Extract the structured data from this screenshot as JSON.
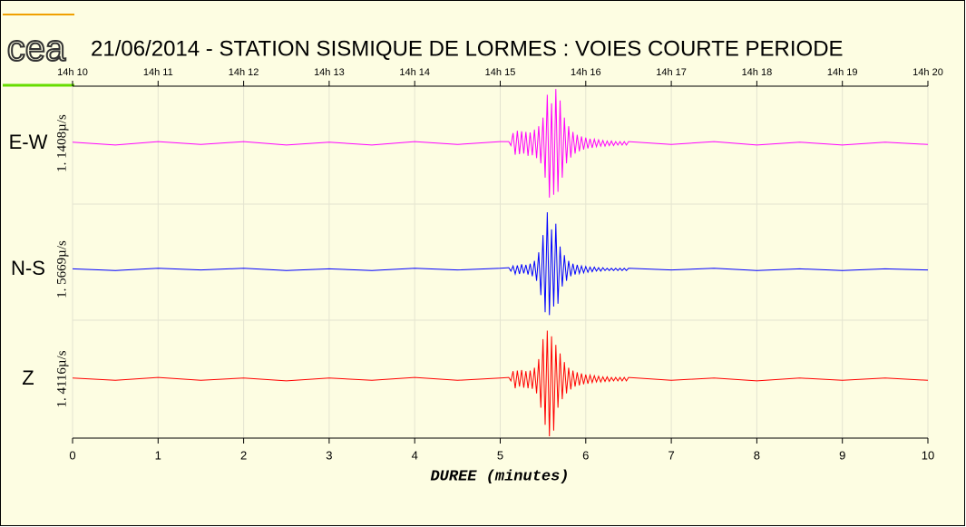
{
  "logo": "cea",
  "chart_data": {
    "type": "line",
    "title": "21/06/2014  -  STATION SISMIQUE DE LORMES : VOIES COURTE PERIODE",
    "x_label": "DUREE (minutes)",
    "xlim": [
      0,
      10
    ],
    "xticks": [
      0,
      1,
      2,
      3,
      4,
      5,
      6,
      7,
      8,
      9,
      10
    ],
    "x2ticks": [
      {
        "value": 0,
        "label": "14h 10"
      },
      {
        "value": 1,
        "label": "14h 11"
      },
      {
        "value": 2,
        "label": "14h 12"
      },
      {
        "value": 3,
        "label": "14h 13"
      },
      {
        "value": 4,
        "label": "14h 14"
      },
      {
        "value": 5,
        "label": "14h 15"
      },
      {
        "value": 6,
        "label": "14h 16"
      },
      {
        "value": 7,
        "label": "14h 17"
      },
      {
        "value": 8,
        "label": "14h 18"
      },
      {
        "value": 9,
        "label": "14h 19"
      },
      {
        "value": 10,
        "label": "14h 20"
      }
    ],
    "ylim": [
      -1,
      1
    ],
    "grid": true,
    "x": [
      0,
      0.5,
      1,
      1.5,
      2,
      2.5,
      3,
      3.5,
      4,
      4.5,
      5,
      5.1,
      5.125,
      5.15,
      5.175,
      5.2,
      5.225,
      5.25,
      5.275,
      5.3,
      5.325,
      5.35,
      5.375,
      5.4,
      5.425,
      5.45,
      5.475,
      5.5,
      5.525,
      5.55,
      5.575,
      5.6,
      5.625,
      5.65,
      5.675,
      5.7,
      5.725,
      5.75,
      5.775,
      5.8,
      5.825,
      5.85,
      5.875,
      5.9,
      5.925,
      5.95,
      5.975,
      6,
      6.025,
      6.05,
      6.075,
      6.1,
      6.125,
      6.15,
      6.175,
      6.2,
      6.225,
      6.25,
      6.275,
      6.3,
      6.325,
      6.35,
      6.375,
      6.4,
      6.425,
      6.45,
      6.475,
      6.5,
      7,
      7.5,
      8,
      8.5,
      9,
      9.5,
      10
    ],
    "series": [
      {
        "name": "E-W",
        "scale_label": "1. 1408µ/s",
        "color": "#ff00ff",
        "values": [
          0.02,
          -0.03,
          0.03,
          -0.02,
          0.03,
          -0.03,
          0.02,
          -0.03,
          0.03,
          -0.02,
          0.03,
          0.03,
          -0.04,
          0.18,
          -0.2,
          0.22,
          -0.19,
          0.21,
          -0.18,
          0.2,
          -0.22,
          0.19,
          -0.21,
          0.24,
          -0.26,
          0.3,
          -0.35,
          0.45,
          -0.6,
          0.85,
          -0.95,
          0.7,
          -0.9,
          0.95,
          -0.85,
          0.75,
          -0.6,
          0.45,
          -0.35,
          0.3,
          -0.25,
          0.2,
          -0.18,
          0.15,
          -0.14,
          0.12,
          -0.11,
          0.1,
          -0.09,
          0.08,
          -0.08,
          0.07,
          -0.06,
          0.06,
          -0.05,
          0.05,
          -0.05,
          0.04,
          -0.04,
          0.04,
          -0.04,
          0.03,
          -0.03,
          0.03,
          -0.03,
          0.03,
          -0.03,
          0.03,
          -0.02,
          0.03,
          -0.03,
          0.02,
          -0.03,
          0.02,
          -0.02
        ]
      },
      {
        "name": "N-S",
        "scale_label": "1. 5669µ/s",
        "color": "#0000ff",
        "values": [
          0.01,
          -0.02,
          0.02,
          -0.01,
          0.02,
          -0.02,
          0.01,
          -0.02,
          0.02,
          -0.01,
          0.02,
          0.03,
          -0.03,
          0.06,
          -0.08,
          0.07,
          -0.08,
          0.09,
          -0.07,
          0.08,
          -0.09,
          0.1,
          -0.12,
          0.15,
          -0.2,
          0.3,
          -0.45,
          0.6,
          -0.75,
          1.0,
          -0.8,
          0.7,
          -0.65,
          0.8,
          -0.6,
          0.4,
          -0.3,
          0.25,
          -0.2,
          0.15,
          -0.12,
          0.1,
          -0.09,
          0.08,
          -0.07,
          0.06,
          -0.06,
          0.05,
          -0.05,
          0.04,
          -0.04,
          0.04,
          -0.03,
          0.03,
          -0.03,
          0.03,
          -0.02,
          0.02,
          -0.02,
          0.02,
          -0.02,
          0.02,
          -0.02,
          0.02,
          -0.02,
          0.02,
          -0.02,
          0.02,
          -0.01,
          0.02,
          -0.02,
          0.01,
          -0.02,
          0.01,
          -0.01
        ]
      },
      {
        "name": "Z",
        "scale_label": "1. 4116µ/s",
        "color": "#ff0000",
        "values": [
          0.02,
          -0.02,
          0.03,
          -0.02,
          0.02,
          -0.03,
          0.02,
          -0.02,
          0.03,
          -0.02,
          0.02,
          0.03,
          -0.03,
          0.14,
          -0.16,
          0.15,
          -0.13,
          0.16,
          -0.15,
          0.14,
          -0.16,
          0.15,
          -0.17,
          0.2,
          -0.25,
          0.35,
          -0.5,
          0.7,
          -0.8,
          0.85,
          -1.0,
          0.75,
          -0.9,
          0.6,
          -0.5,
          0.45,
          -0.35,
          0.3,
          -0.25,
          0.2,
          -0.18,
          0.15,
          -0.13,
          0.12,
          -0.11,
          0.1,
          -0.09,
          0.08,
          -0.08,
          0.07,
          -0.06,
          0.06,
          -0.05,
          0.05,
          -0.05,
          0.04,
          -0.04,
          0.04,
          -0.04,
          0.03,
          -0.03,
          0.03,
          -0.03,
          0.03,
          -0.03,
          0.03,
          -0.03,
          0.03,
          -0.02,
          0.02,
          -0.03,
          0.02,
          -0.02,
          0.02,
          -0.02
        ]
      }
    ]
  }
}
